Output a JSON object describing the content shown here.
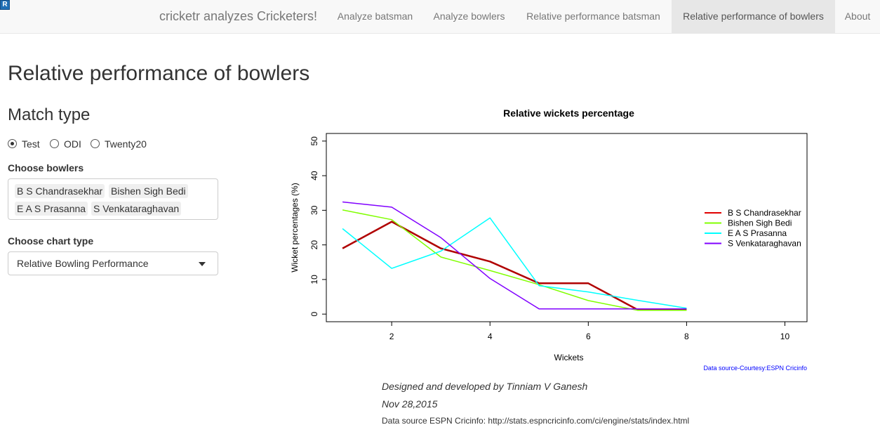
{
  "navbar": {
    "r_badge": "R",
    "brand": "cricketr analyzes Cricketers!",
    "tabs": [
      {
        "label": "Analyze batsman"
      },
      {
        "label": "Analyze bowlers"
      },
      {
        "label": "Relative performance batsman"
      },
      {
        "label": "Relative performance of bowlers",
        "active": true
      },
      {
        "label": "About"
      }
    ]
  },
  "page": {
    "title": "Relative performance of bowlers",
    "match_type": {
      "heading": "Match type",
      "options": [
        {
          "label": "Test",
          "checked": true
        },
        {
          "label": "ODI",
          "checked": false
        },
        {
          "label": "Twenty20",
          "checked": false
        }
      ]
    },
    "bowlers": {
      "label": "Choose bowlers",
      "selected": [
        "B S Chandrasekhar",
        "Bishen Sigh Bedi",
        "E A S Prasanna",
        "S Venkataraghavan"
      ]
    },
    "chart_type": {
      "label": "Choose chart type",
      "value": "Relative Bowling Performance"
    }
  },
  "chart_data": {
    "type": "line",
    "title": "Relative wickets percentage",
    "xlabel": "Wickets",
    "ylabel": "Wicket percentages (%)",
    "xlim": [
      1,
      10
    ],
    "ylim": [
      0,
      50
    ],
    "xticks": [
      2,
      4,
      6,
      8,
      10
    ],
    "yticks": [
      0,
      10,
      20,
      30,
      40,
      50
    ],
    "legend_position": "right",
    "grid": false,
    "source_note": "Data source-Courtesy:ESPN Cricinfo",
    "series": [
      {
        "name": "B S Chandrasekhar",
        "color": "#e00000",
        "x": [
          1,
          2,
          3,
          4,
          5,
          6,
          7,
          8
        ],
        "values": [
          19,
          26.7,
          19,
          15.2,
          8.9,
          8.9,
          1.3,
          1.3
        ]
      },
      {
        "name": "Bishen Sigh Bedi",
        "color": "#80ff00",
        "x": [
          1,
          2,
          3,
          4,
          5,
          6,
          7,
          8
        ],
        "values": [
          30.1,
          27.3,
          16.5,
          12.6,
          8.5,
          3.9,
          1.1,
          1.1
        ]
      },
      {
        "name": "E A S Prasanna",
        "color": "#00ffff",
        "x": [
          1,
          2,
          3,
          4,
          5,
          6,
          7,
          8
        ],
        "values": [
          24.7,
          13.2,
          18.2,
          27.8,
          8.2,
          6.4,
          4,
          1.7
        ]
      },
      {
        "name": "S Venkataraghavan",
        "color": "#8000ff",
        "x": [
          1,
          2,
          3,
          4,
          5,
          6,
          7,
          8
        ],
        "values": [
          32.4,
          30.9,
          22.1,
          10.3,
          1.5,
          1.5,
          1.5,
          1.5
        ]
      }
    ]
  },
  "footer": {
    "credit": "Designed and developed by Tinniam V Ganesh",
    "date": "Nov 28,2015",
    "source": "Data source ESPN Cricinfo: http://stats.espncricinfo.com/ci/engine/stats/index.html"
  }
}
